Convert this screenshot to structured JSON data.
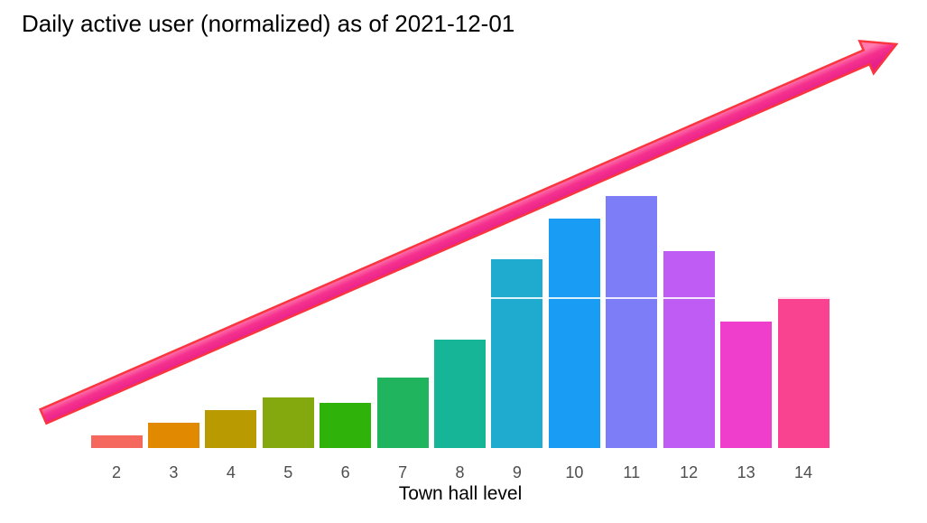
{
  "title": "Daily active user (normalized) as of 2021-12-01",
  "chart_data": {
    "type": "bar",
    "title": "Daily active user (normalized) as of 2021-12-01",
    "xlabel": "Town hall level",
    "ylabel": "",
    "categories": [
      "2",
      "3",
      "4",
      "5",
      "6",
      "7",
      "8",
      "9",
      "10",
      "11",
      "12",
      "13",
      "14"
    ],
    "values": [
      0.05,
      0.1,
      0.15,
      0.2,
      0.18,
      0.28,
      0.43,
      0.75,
      0.91,
      1.0,
      0.78,
      0.5,
      0.6
    ],
    "colors": [
      "#F5685D",
      "#E18900",
      "#B99A00",
      "#84A90E",
      "#2FB30B",
      "#21B45F",
      "#16B598",
      "#1FABD0",
      "#199CF4",
      "#7E7DF8",
      "#BE5CF3",
      "#EE3ECB",
      "#FA4390"
    ],
    "ylim": [
      0,
      1.1
    ],
    "grid": false,
    "legend": false,
    "annotations": {
      "reference_line": {
        "value": 0.6,
        "color": "#FFFFFF"
      },
      "trend_arrow": {
        "direction": "up-right",
        "fill": "#F5308E",
        "fill_light": "#FF7BAE",
        "fill_dark": "#E6218A",
        "stroke": "#FA3540"
      }
    }
  },
  "text_colors": {
    "title": "#000000",
    "tick": "#4E4E4E",
    "axis_label": "#000000"
  },
  "background": "#FFFFFF"
}
